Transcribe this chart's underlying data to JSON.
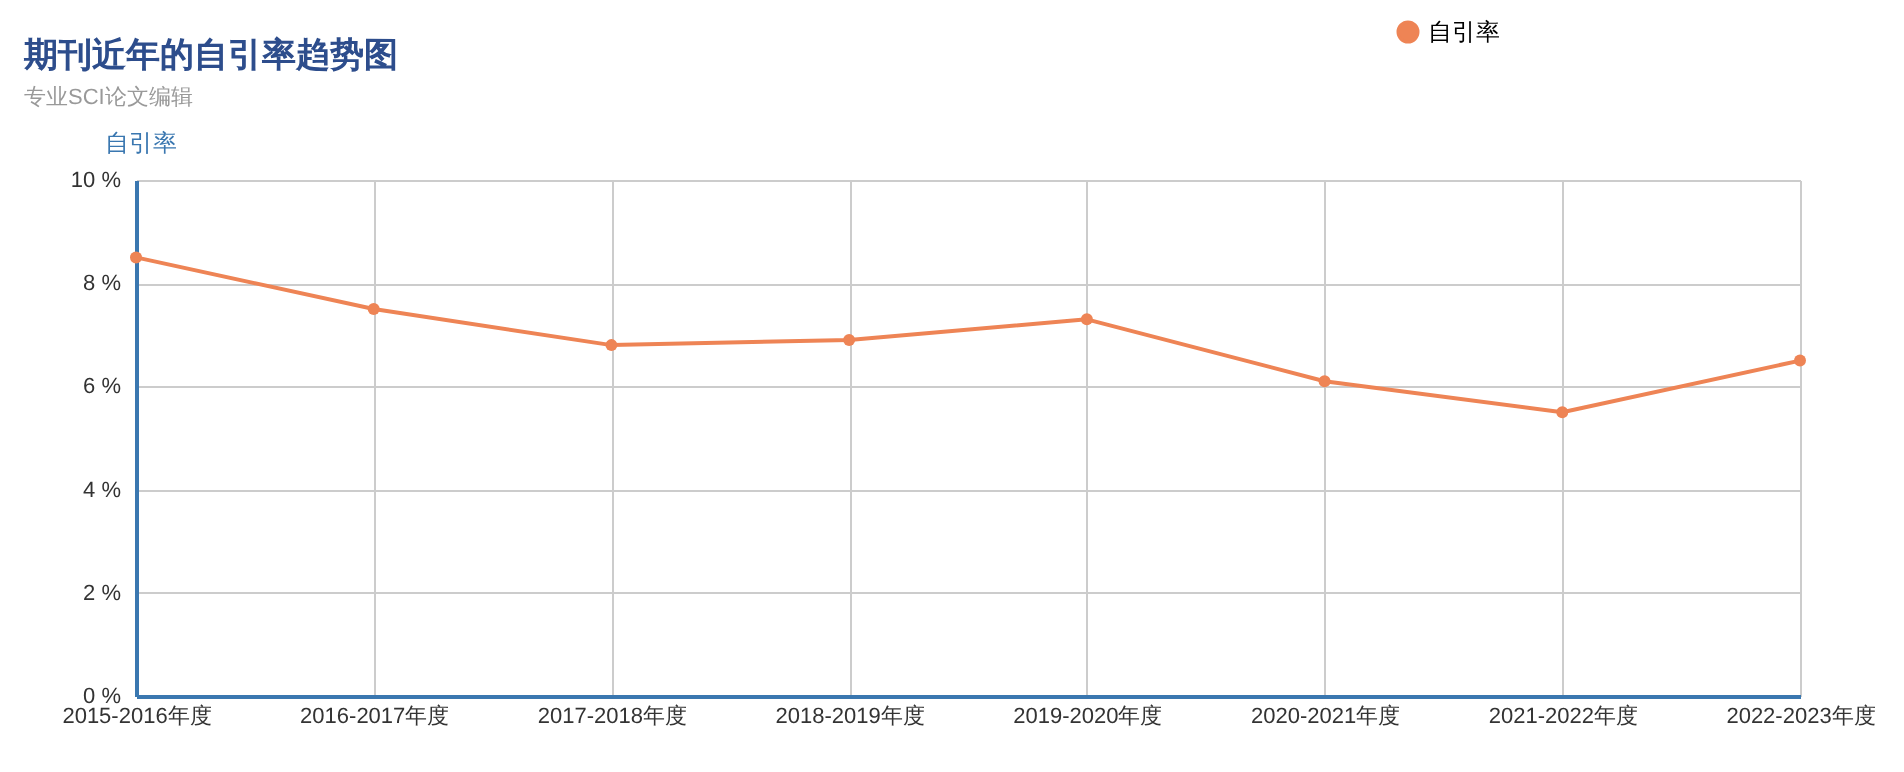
{
  "chart_data": {
    "type": "line",
    "title": "期刊近年的自引率趋势图",
    "subtitle": "专业SCI论文编辑",
    "ylabel": "自引率",
    "categories": [
      "2015-2016年度",
      "2016-2017年度",
      "2017-2018年度",
      "2018-2019年度",
      "2019-2020年度",
      "2020-2021年度",
      "2021-2022年度",
      "2022-2023年度"
    ],
    "series": [
      {
        "name": "自引率",
        "color": "#ee8455",
        "values": [
          8.5,
          7.5,
          6.8,
          6.9,
          7.3,
          6.1,
          5.5,
          6.5
        ]
      }
    ],
    "ylim": [
      0,
      10
    ],
    "yticks": [
      {
        "value": 0,
        "label": "0 %"
      },
      {
        "value": 2,
        "label": "2 %"
      },
      {
        "value": 4,
        "label": "4 %"
      },
      {
        "value": 6,
        "label": "6 %"
      },
      {
        "value": 8,
        "label": "8 %"
      },
      {
        "value": 10,
        "label": "10 %"
      }
    ],
    "grid": true,
    "legend": "top right",
    "marker": "circle",
    "line_style": "solid"
  }
}
